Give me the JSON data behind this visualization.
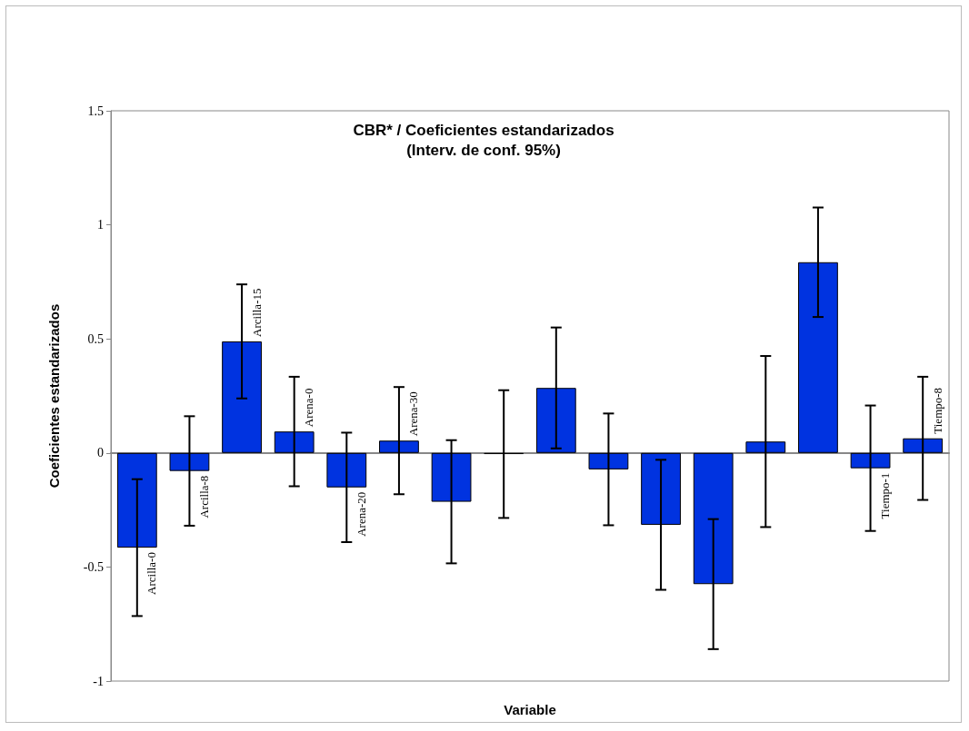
{
  "chart_data": {
    "type": "bar",
    "title": "CBR* / Coeficientes estandarizados\n(Interv. de conf. 95%)",
    "xlabel": "Variable",
    "ylabel": "Coeficientes estandarizados",
    "categories": [
      "Arcilla-0",
      "Arcilla-8",
      "Arcilla-15",
      "Arena-0",
      "Arena-20",
      "Arena-30",
      null,
      null,
      null,
      null,
      null,
      null,
      null,
      null,
      "Tiempo-1",
      "Tiempo-8"
    ],
    "values": [
      -0.415,
      -0.079,
      0.489,
      0.094,
      -0.151,
      0.054,
      -0.214,
      -0.005,
      0.285,
      -0.072,
      -0.315,
      -0.575,
      0.05,
      0.836,
      -0.067,
      0.064
    ],
    "errors": [
      0.3,
      0.24,
      0.25,
      0.24,
      0.24,
      0.235,
      0.27,
      0.28,
      0.265,
      0.245,
      0.285,
      0.285,
      0.375,
      0.24,
      0.275,
      0.27
    ],
    "color": "#0033e0",
    "ylim": [
      -1,
      1.5
    ],
    "yticks": [
      -1,
      -0.5,
      0,
      0.5,
      1,
      1.5
    ],
    "grid": false
  }
}
